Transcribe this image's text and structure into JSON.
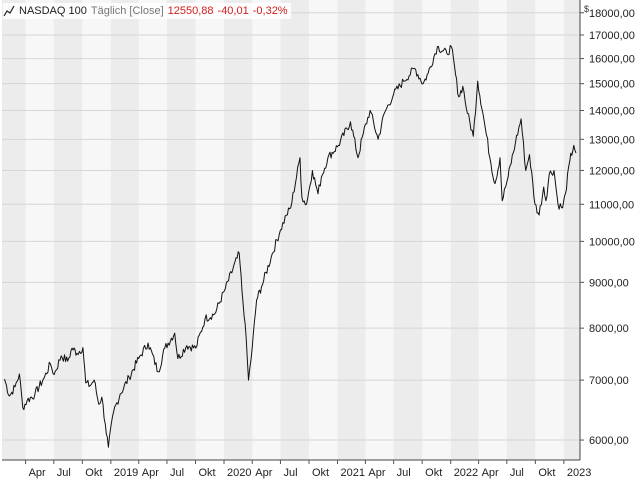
{
  "header": {
    "name": "NASDAQ 100",
    "mode": "Täglich [Close]",
    "last": "12550,88",
    "change": "-40,01",
    "change_pct": "-0,32%",
    "icon": "line-chart-icon"
  },
  "colors": {
    "line": "#111111",
    "down": "#d42020",
    "band_light": "#f7f7f7",
    "band_dark": "#ececec",
    "grid": "#d6d6d6"
  },
  "chart_data": {
    "type": "line",
    "title": "",
    "xlabel": "",
    "ylabel": "",
    "unit": "$",
    "y_scale": "log",
    "ylim": [
      5700,
      18600
    ],
    "grid": true,
    "y_ticks": [
      6000,
      7000,
      8000,
      9000,
      10000,
      11000,
      12000,
      13000,
      14000,
      15000,
      16000,
      17000,
      18000
    ],
    "y_tick_labels": [
      "6000,00",
      "7000,00",
      "8000,00",
      "9000,00",
      "10000,00",
      "11000,00",
      "12000,00",
      "13000,00",
      "14000,00",
      "15000,00",
      "16000,00",
      "17000,00",
      "18000,00"
    ],
    "x_ticks": [
      "2018-04",
      "2018-07",
      "2018-10",
      "2019-01",
      "2019-04",
      "2019-07",
      "2019-10",
      "2020-01",
      "2020-04",
      "2020-07",
      "2020-10",
      "2021-01",
      "2021-04",
      "2021-07",
      "2021-10",
      "2022-01",
      "2022-04",
      "2022-07",
      "2022-10",
      "2023-01"
    ],
    "x_tick_labels": [
      "Apr",
      "Jul",
      "Okt",
      "2019",
      "Apr",
      "Jul",
      "Okt",
      "2020",
      "Apr",
      "Jul",
      "Okt",
      "2021",
      "Apr",
      "Jul",
      "Okt",
      "2022",
      "Apr",
      "Jul",
      "Okt",
      "2023"
    ],
    "series": [
      {
        "x": [
          "2018-01-23",
          "2018-02-08",
          "2018-02-26",
          "2018-03-12",
          "2018-03-23",
          "2018-04-06",
          "2018-05-01",
          "2018-06-01",
          "2018-06-20",
          "2018-07-02",
          "2018-07-25",
          "2018-08-15",
          "2018-08-29",
          "2018-09-14",
          "2018-10-03",
          "2018-10-12",
          "2018-10-26",
          "2018-11-08",
          "2018-11-23",
          "2018-12-03",
          "2018-12-14",
          "2018-12-24",
          "2019-01-10",
          "2019-01-31",
          "2019-03-01",
          "2019-04-01",
          "2019-05-01",
          "2019-06-03",
          "2019-06-24",
          "2019-07-26",
          "2019-08-05",
          "2019-09-03",
          "2019-10-02",
          "2019-11-01",
          "2019-12-02",
          "2020-01-02",
          "2020-02-19",
          "2020-02-28",
          "2020-03-09",
          "2020-03-20",
          "2020-04-01",
          "2020-04-15",
          "2020-05-01",
          "2020-06-01",
          "2020-07-01",
          "2020-07-20",
          "2020-08-03",
          "2020-09-02",
          "2020-09-08",
          "2020-09-23",
          "2020-10-12",
          "2020-10-30",
          "2020-11-10",
          "2020-12-01",
          "2021-01-04",
          "2021-02-12",
          "2021-03-08",
          "2021-03-25",
          "2021-04-16",
          "2021-05-12",
          "2021-06-01",
          "2021-07-01",
          "2021-08-02",
          "2021-09-07",
          "2021-10-04",
          "2021-10-20",
          "2021-11-19",
          "2021-12-20",
          "2022-01-03",
          "2022-01-27",
          "2022-02-09",
          "2022-02-24",
          "2022-03-15",
          "2022-03-29",
          "2022-04-15",
          "2022-05-11",
          "2022-05-24",
          "2022-06-09",
          "2022-06-16",
          "2022-07-05",
          "2022-07-29",
          "2022-08-16",
          "2022-08-31",
          "2022-09-12",
          "2022-09-30",
          "2022-10-13",
          "2022-10-28",
          "2022-11-04",
          "2022-11-15",
          "2022-11-30",
          "2022-12-13",
          "2022-12-28",
          "2023-01-06",
          "2023-01-20",
          "2023-02-02",
          "2023-02-09"
        ],
        "y": [
          7020,
          6720,
          6880,
          7110,
          6520,
          6640,
          6750,
          7050,
          7300,
          7100,
          7450,
          7350,
          7600,
          7500,
          7610,
          6950,
          6900,
          7000,
          6580,
          6700,
          6250,
          5890,
          6450,
          6750,
          7050,
          7400,
          7700,
          7150,
          7600,
          7900,
          7400,
          7650,
          7600,
          8200,
          8300,
          8800,
          9700,
          8800,
          8100,
          7000,
          7600,
          8600,
          8900,
          9600,
          10300,
          10700,
          10900,
          12400,
          11200,
          11000,
          12000,
          11300,
          11800,
          12400,
          12800,
          13600,
          12400,
          13200,
          14000,
          13000,
          13900,
          14600,
          15100,
          15600,
          15000,
          15400,
          16500,
          16200,
          16500,
          14500,
          14900,
          13900,
          13100,
          15100,
          13900,
          12200,
          11600,
          12400,
          11100,
          11800,
          12900,
          13700,
          12000,
          12500,
          11000,
          10700,
          11500,
          11100,
          11900,
          12000,
          11000,
          10900,
          11300,
          12300,
          12800,
          12550
        ]
      }
    ]
  }
}
